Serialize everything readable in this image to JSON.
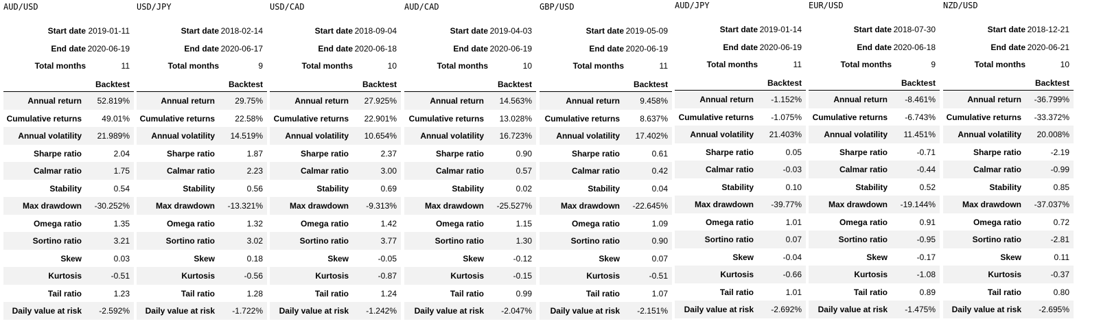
{
  "labels": {
    "start_date": "Start date",
    "end_date": "End date",
    "total_months": "Total months",
    "backtest": "Backtest",
    "metrics": [
      "Annual return",
      "Cumulative returns",
      "Annual volatility",
      "Sharpe ratio",
      "Calmar ratio",
      "Stability",
      "Max drawdown",
      "Omega ratio",
      "Sortino ratio",
      "Skew",
      "Kurtosis",
      "Tail ratio",
      "Daily value at risk"
    ]
  },
  "panels": [
    {
      "pair": "AUD/USD",
      "start": "2019-01-11",
      "end": "2020-06-19",
      "months": "11",
      "values": [
        "52.819%",
        "49.01%",
        "21.989%",
        "2.04",
        "1.75",
        "0.54",
        "-30.252%",
        "1.35",
        "3.21",
        "0.03",
        "-0.51",
        "1.23",
        "-2.592%"
      ]
    },
    {
      "pair": "USD/JPY",
      "start": "2018-02-14",
      "end": "2020-06-17",
      "months": "9",
      "values": [
        "29.75%",
        "22.58%",
        "14.519%",
        "1.87",
        "2.23",
        "0.56",
        "-13.321%",
        "1.32",
        "3.02",
        "0.18",
        "-0.56",
        "1.28",
        "-1.722%"
      ]
    },
    {
      "pair": "USD/CAD",
      "start": "2018-09-04",
      "end": "2020-06-18",
      "months": "10",
      "values": [
        "27.925%",
        "22.901%",
        "10.654%",
        "2.37",
        "3.00",
        "0.69",
        "-9.313%",
        "1.42",
        "3.77",
        "-0.05",
        "-0.87",
        "1.24",
        "-1.242%"
      ]
    },
    {
      "pair": "AUD/CAD",
      "start": "2019-04-03",
      "end": "2020-06-19",
      "months": "10",
      "values": [
        "14.563%",
        "13.028%",
        "16.723%",
        "0.90",
        "0.57",
        "0.02",
        "-25.527%",
        "1.15",
        "1.30",
        "-0.12",
        "-0.15",
        "0.99",
        "-2.047%"
      ]
    },
    {
      "pair": "GBP/USD",
      "start": "2019-05-09",
      "end": "2020-06-19",
      "months": "11",
      "values": [
        "9.458%",
        "8.637%",
        "17.402%",
        "0.61",
        "0.42",
        "0.04",
        "-22.645%",
        "1.09",
        "0.90",
        "0.07",
        "-0.51",
        "1.07",
        "-2.151%"
      ]
    },
    {
      "pair": "AUD/JPY",
      "start": "2019-01-14",
      "end": "2020-06-19",
      "months": "11",
      "values": [
        "-1.152%",
        "-1.075%",
        "21.403%",
        "0.05",
        "-0.03",
        "0.10",
        "-39.77%",
        "1.01",
        "0.07",
        "-0.04",
        "-0.66",
        "1.01",
        "-2.692%"
      ]
    },
    {
      "pair": "EUR/USD",
      "start": "2018-07-30",
      "end": "2020-06-18",
      "months": "9",
      "values": [
        "-8.461%",
        "-6.743%",
        "11.451%",
        "-0.71",
        "-0.44",
        "0.52",
        "-19.144%",
        "0.91",
        "-0.95",
        "-0.17",
        "-1.08",
        "0.89",
        "-1.475%"
      ]
    },
    {
      "pair": "NZD/USD",
      "start": "2018-12-21",
      "end": "2020-06-21",
      "months": "10",
      "values": [
        "-36.799%",
        "-33.372%",
        "20.008%",
        "-2.19",
        "-0.99",
        "0.85",
        "-37.037%",
        "0.72",
        "-2.81",
        "0.11",
        "-0.37",
        "0.80",
        "-2.695%"
      ]
    }
  ]
}
